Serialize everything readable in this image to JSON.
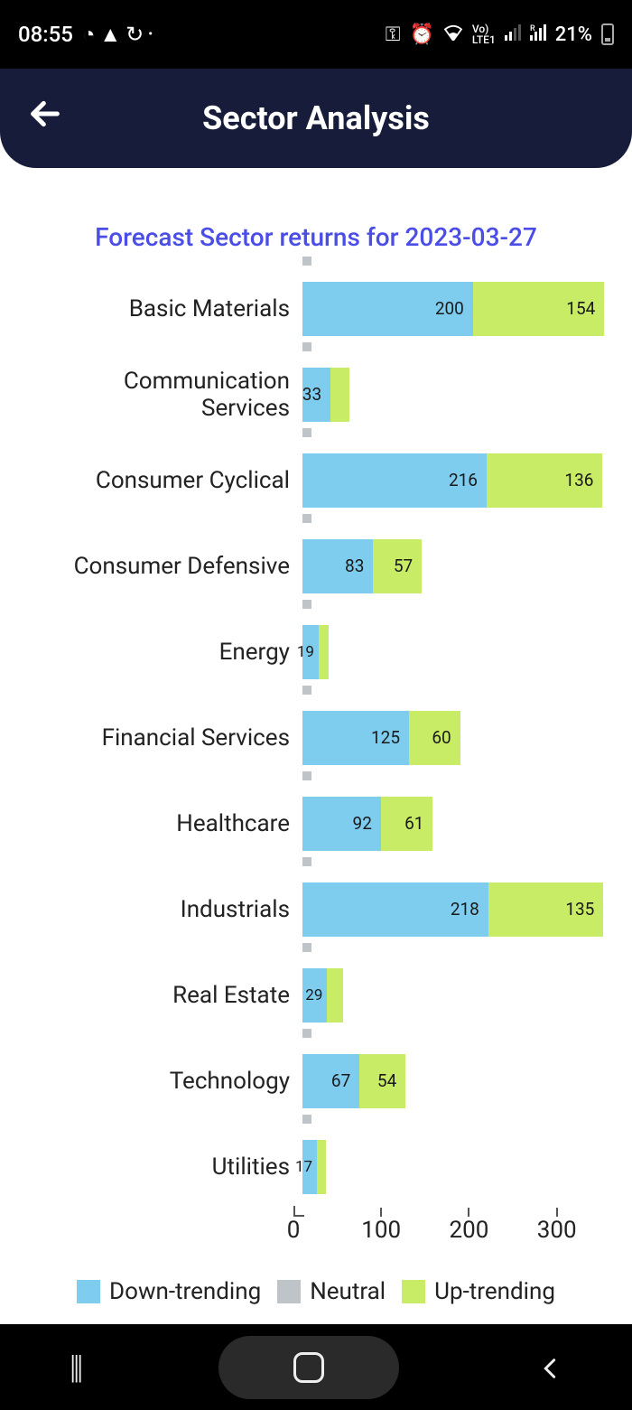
{
  "status": {
    "time": "08:55",
    "battery_pct": "21%"
  },
  "app": {
    "title": "Sector Analysis"
  },
  "chart": {
    "title": "Forecast Sector returns for 2023-03-27",
    "type": "stacked-horizontal-bar",
    "x_max": 360,
    "x_ticks": [
      0,
      100,
      200,
      300
    ],
    "colors": {
      "down": "#7ecdef",
      "neutral": "#bfc4c9",
      "up": "#c8ec66"
    },
    "legend": {
      "down": "Down-trending",
      "neutral": "Neutral",
      "up": "Up-trending"
    },
    "rows": [
      {
        "label": "Basic Materials",
        "down": 200,
        "neutral": 3,
        "up": 154
      },
      {
        "label": "Communication Services",
        "down": 33,
        "neutral": 3,
        "up": 22
      },
      {
        "label": "Consumer Cyclical",
        "down": 216,
        "neutral": 3,
        "up": 136
      },
      {
        "label": "Consumer Defensive",
        "down": 83,
        "neutral": 3,
        "up": 57
      },
      {
        "label": "Energy",
        "down": 19,
        "neutral": 3,
        "up": 12
      },
      {
        "label": "Financial Services",
        "down": 125,
        "neutral": 3,
        "up": 60
      },
      {
        "label": "Healthcare",
        "down": 92,
        "neutral": 3,
        "up": 61
      },
      {
        "label": "Industrials",
        "down": 218,
        "neutral": 3,
        "up": 135
      },
      {
        "label": "Real Estate",
        "down": 29,
        "neutral": 3,
        "up": 19
      },
      {
        "label": "Technology",
        "down": 67,
        "neutral": 3,
        "up": 54
      },
      {
        "label": "Utilities",
        "down": 17,
        "neutral": 3,
        "up": 11
      }
    ],
    "show_up_label_cutoff": 40
  }
}
